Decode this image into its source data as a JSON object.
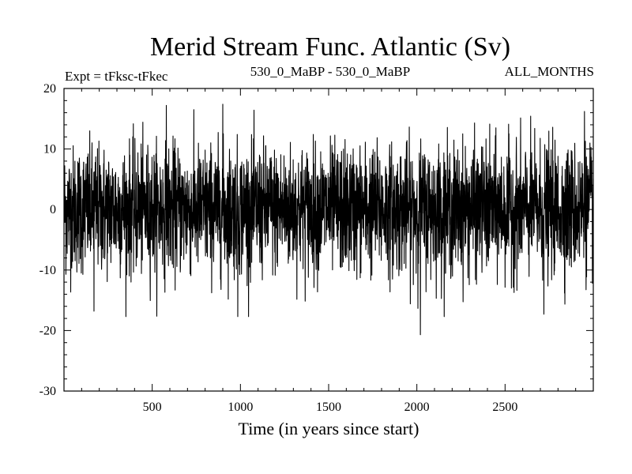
{
  "chart_data": {
    "type": "line",
    "title": "Merid Stream Func. Atlantic (Sv)",
    "experiment_label": "Expt = tFksc-tFkec",
    "period_label": "530_0_MaBP - 530_0_MaBP",
    "season_label": "ALL_MONTHS",
    "xlabel": "Time (in years since start)",
    "ylabel": "",
    "xlim": [
      0,
      3000
    ],
    "ylim": [
      -30,
      20
    ],
    "x_ticks": [
      500,
      1000,
      1500,
      2000,
      2500
    ],
    "y_ticks": [
      20,
      10,
      0,
      -10,
      -20,
      -30
    ],
    "series": [
      {
        "name": "Merid Stream Func. Atlantic",
        "color": "#000000",
        "description": "annual values, years 1-3000, noisy around 0 Sv",
        "mean": 0,
        "typical_range": [
          -7,
          7
        ],
        "max": 17.5,
        "min": -20.7,
        "n_points": 3000
      }
    ],
    "notable_points": [
      {
        "x": 580,
        "y": 17.2
      },
      {
        "x": 900,
        "y": 17.4
      },
      {
        "x": 2950,
        "y": 16.2
      },
      {
        "x": 985,
        "y": -17.7
      },
      {
        "x": 2020,
        "y": -20.7
      },
      {
        "x": 2720,
        "y": -17.3
      },
      {
        "x": 170,
        "y": -16.8
      }
    ]
  }
}
